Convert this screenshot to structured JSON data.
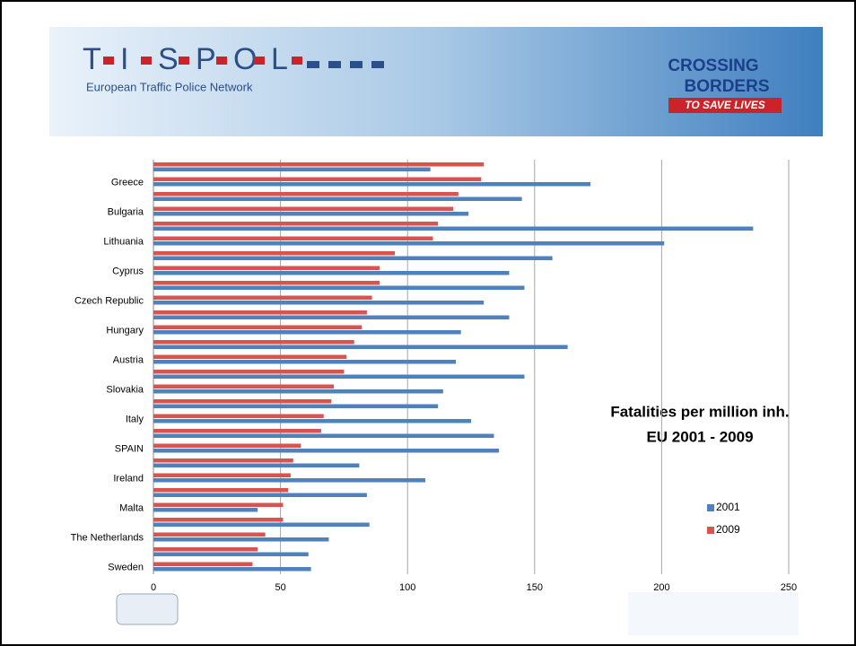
{
  "header": {
    "logo_letters": [
      "T",
      "I",
      "S",
      "P",
      "O",
      "L"
    ],
    "network": "European Traffic Police Network",
    "campaign": [
      "CROSSING",
      "BORDERS",
      "TO SAVE LIVES"
    ]
  },
  "chart_data": {
    "type": "hbar",
    "title": "Fatalities per million inh.",
    "subtitle": "EU 2001 - 2009",
    "categories": [
      null,
      "Greece",
      null,
      "Bulgaria",
      null,
      "Lithuania",
      null,
      "Cyprus",
      null,
      "Czech Republic",
      null,
      "Hungary",
      null,
      "Austria",
      null,
      "Slovakia",
      null,
      "Italy",
      null,
      "SPAIN",
      null,
      "Ireland",
      null,
      "Malta",
      null,
      "The Netherlands",
      null,
      "Sweden"
    ],
    "series": [
      {
        "name": "2009",
        "color": "#d9534f",
        "values": [
          130,
          129,
          120,
          118,
          112,
          110,
          95,
          89,
          89,
          86,
          84,
          82,
          79,
          76,
          75,
          71,
          70,
          67,
          66,
          58,
          55,
          54,
          53,
          51,
          51,
          44,
          41,
          39
        ]
      },
      {
        "name": "2001",
        "color": "#4f81bd",
        "values": [
          109,
          172,
          145,
          124,
          236,
          201,
          157,
          140,
          146,
          130,
          140,
          121,
          163,
          119,
          146,
          114,
          112,
          125,
          134,
          136,
          81,
          107,
          84,
          41,
          85,
          69,
          61,
          62
        ]
      }
    ],
    "xlim": [
      0,
      250
    ],
    "xticks": [
      0,
      50,
      100,
      150,
      200,
      250
    ],
    "grid": true,
    "legend": "right"
  }
}
